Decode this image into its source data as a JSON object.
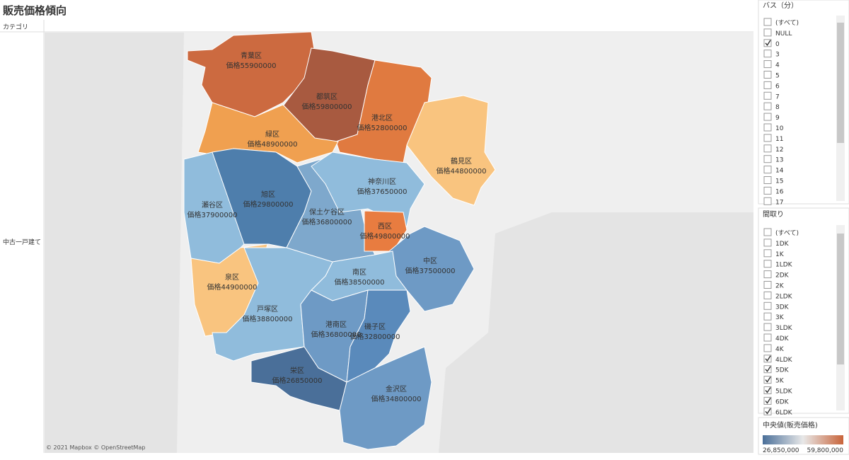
{
  "header": {
    "title": "販売価格傾向",
    "column_header": "カテゴリ",
    "row_label": "中古一戸建て"
  },
  "map": {
    "attribution": "© 2021 Mapbox © OpenStreetMap",
    "regions": [
      {
        "name": "青葉区",
        "price": "価格55900000",
        "color": "#cc6a40"
      },
      {
        "name": "都筑区",
        "price": "価格59800000",
        "color": "#a85a40"
      },
      {
        "name": "港北区",
        "price": "価格52800000",
        "color": "#e07a40"
      },
      {
        "name": "緑区",
        "price": "価格48900000",
        "color": "#f0a050"
      },
      {
        "name": "鶴見区",
        "price": "価格44800000",
        "color": "#f9c47f"
      },
      {
        "name": "瀬谷区",
        "price": "価格37900000",
        "color": "#90bcdc"
      },
      {
        "name": "旭区",
        "price": "価格29800000",
        "color": "#4e7eac"
      },
      {
        "name": "保土ケ谷区",
        "price": "価格36800000",
        "color": "#7ea8cc"
      },
      {
        "name": "神奈川区",
        "price": "価格37650000",
        "color": "#90bcdc"
      },
      {
        "name": "西区",
        "price": "価格49800000",
        "color": "#e87c40"
      },
      {
        "name": "中区",
        "price": "価格37500000",
        "color": "#6e9ac5"
      },
      {
        "name": "南区",
        "price": "価格38500000",
        "color": "#90bcdc"
      },
      {
        "name": "泉区",
        "price": "価格44900000",
        "color": "#f9c47f"
      },
      {
        "name": "戸塚区",
        "price": "価格38800000",
        "color": "#90bcdc"
      },
      {
        "name": "港南区",
        "price": "価格36800000",
        "color": "#6e9ac5"
      },
      {
        "name": "磯子区",
        "price": "価格32800000",
        "color": "#5a8abb"
      },
      {
        "name": "栄区",
        "price": "価格26850000",
        "color": "#4a6f99"
      },
      {
        "name": "金沢区",
        "price": "価格34800000",
        "color": "#6e9ac5"
      }
    ]
  },
  "filters": [
    {
      "title": "バス（分）",
      "items": [
        {
          "label": "(すべて)",
          "checked": false
        },
        {
          "label": "NULL",
          "checked": false
        },
        {
          "label": "0",
          "checked": true
        },
        {
          "label": "3",
          "checked": false
        },
        {
          "label": "4",
          "checked": false
        },
        {
          "label": "5",
          "checked": false
        },
        {
          "label": "6",
          "checked": false
        },
        {
          "label": "7",
          "checked": false
        },
        {
          "label": "8",
          "checked": false
        },
        {
          "label": "9",
          "checked": false
        },
        {
          "label": "10",
          "checked": false
        },
        {
          "label": "11",
          "checked": false
        },
        {
          "label": "12",
          "checked": false
        },
        {
          "label": "13",
          "checked": false
        },
        {
          "label": "14",
          "checked": false
        },
        {
          "label": "15",
          "checked": false
        },
        {
          "label": "16",
          "checked": false
        },
        {
          "label": "17",
          "checked": false
        }
      ]
    },
    {
      "title": "間取り",
      "items": [
        {
          "label": "(すべて)",
          "checked": false
        },
        {
          "label": "1DK",
          "checked": false
        },
        {
          "label": "1K",
          "checked": false
        },
        {
          "label": "1LDK",
          "checked": false
        },
        {
          "label": "2DK",
          "checked": false
        },
        {
          "label": "2K",
          "checked": false
        },
        {
          "label": "2LDK",
          "checked": false
        },
        {
          "label": "3DK",
          "checked": false
        },
        {
          "label": "3K",
          "checked": false
        },
        {
          "label": "3LDK",
          "checked": false
        },
        {
          "label": "4DK",
          "checked": false
        },
        {
          "label": "4K",
          "checked": false
        },
        {
          "label": "4LDK",
          "checked": true
        },
        {
          "label": "5DK",
          "checked": true
        },
        {
          "label": "5K",
          "checked": true
        },
        {
          "label": "5LDK",
          "checked": true
        },
        {
          "label": "6DK",
          "checked": true
        },
        {
          "label": "6LDK",
          "checked": true
        }
      ]
    }
  ],
  "legend": {
    "title": "中央値(販売価格)",
    "min_label": "26,850,000",
    "max_label": "59,800,000",
    "low_color": "#4a6f99",
    "high_color": "#c8643a"
  }
}
